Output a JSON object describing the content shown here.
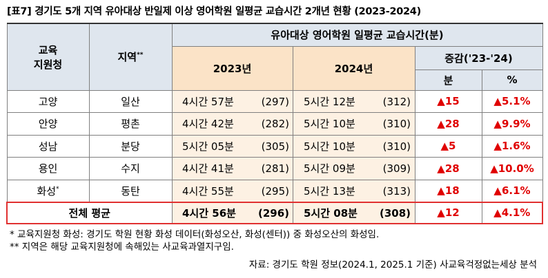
{
  "title": "[표7] 경기도 5개 지역 유아대상 반일제 이상 영어학원 일평균 교습시간 2개년 현황 (2023-2024)",
  "table": {
    "header": {
      "office": [
        "교육",
        "지원청"
      ],
      "region": "지역",
      "region_mark": "**",
      "group": "유아대상 영어학원 일평균 교습시간(분)",
      "y2023": "2023년",
      "y2024": "2024년",
      "change": "증감('23-'24)",
      "change_min": "분",
      "change_pct": "%"
    },
    "rows": [
      {
        "office": "고양",
        "region": "일산",
        "t2023": "4시간 57분",
        "m2023": "(297)",
        "t2024": "5시간 12분",
        "m2024": "(312)",
        "diff": "▲15",
        "pct": "▲5.1%"
      },
      {
        "office": "안양",
        "region": "평촌",
        "t2023": "4시간 42분",
        "m2023": "(282)",
        "t2024": "5시간 10분",
        "m2024": "(310)",
        "diff": "▲28",
        "pct": "▲9.9%"
      },
      {
        "office": "성남",
        "region": "분당",
        "t2023": "5시간 05분",
        "m2023": "(305)",
        "t2024": "5시간 10분",
        "m2024": "(310)",
        "diff": "▲5",
        "pct": "▲1.6%"
      },
      {
        "office": "용인",
        "region": "수지",
        "t2023": "4시간 41분",
        "m2023": "(281)",
        "t2024": "5시간 09분",
        "m2024": "(309)",
        "diff": "▲28",
        "pct": "▲10.0%"
      },
      {
        "office": "화성",
        "office_mark": "*",
        "region": "동탄",
        "t2023": "4시간 55분",
        "m2023": "(295)",
        "t2024": "5시간 13분",
        "m2024": "(313)",
        "diff": "▲18",
        "pct": "▲6.1%"
      }
    ],
    "total": {
      "label": "전체 평균",
      "t2023": "4시간 56분",
      "m2023": "(296)",
      "t2024": "5시간 08분",
      "m2024": "(308)",
      "diff": "▲12",
      "pct": "▲4.1%"
    }
  },
  "notes": [
    "* 교육지원청 화성: 경기도 학원 현황 화성 데이터(화성오산, 화성(센터)) 중 화성오산의 화성임.",
    "** 지역은 해당 교육지원청에 속해있는 사교육과열지구임."
  ],
  "source": "자료: 경기도 학원 정보(2024.1, 2025.1 기준) 사교육걱정없는세상 분석"
}
